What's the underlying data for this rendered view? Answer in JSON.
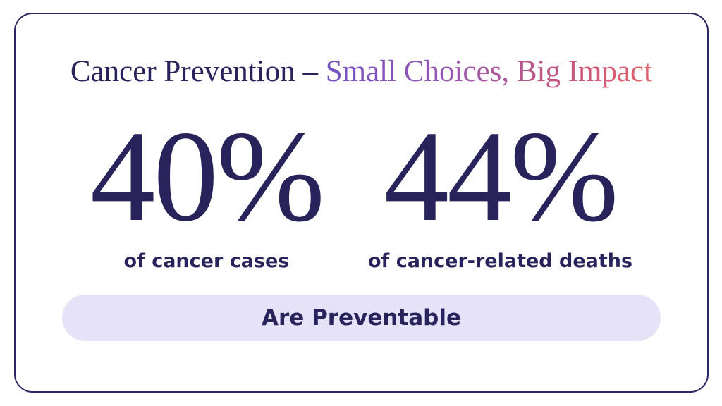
{
  "card": {
    "title": {
      "primary": "Cancer Prevention – ",
      "highlight": "Small Choices, Big Impact"
    },
    "stats": [
      {
        "value": "40%",
        "label": "of cancer cases"
      },
      {
        "value": "44%",
        "label": "of cancer-related deaths"
      }
    ],
    "banner": {
      "label": "Are Preventable"
    }
  },
  "colors": {
    "text_navy": "#29235c",
    "card_border": "#2b2563",
    "title_gradient_start": "#7452c5",
    "title_gradient_mid": "#9a57ae",
    "title_gradient_end": "#e2636c",
    "banner_background": "#e6e3f8",
    "page_background": "#ffffff"
  }
}
